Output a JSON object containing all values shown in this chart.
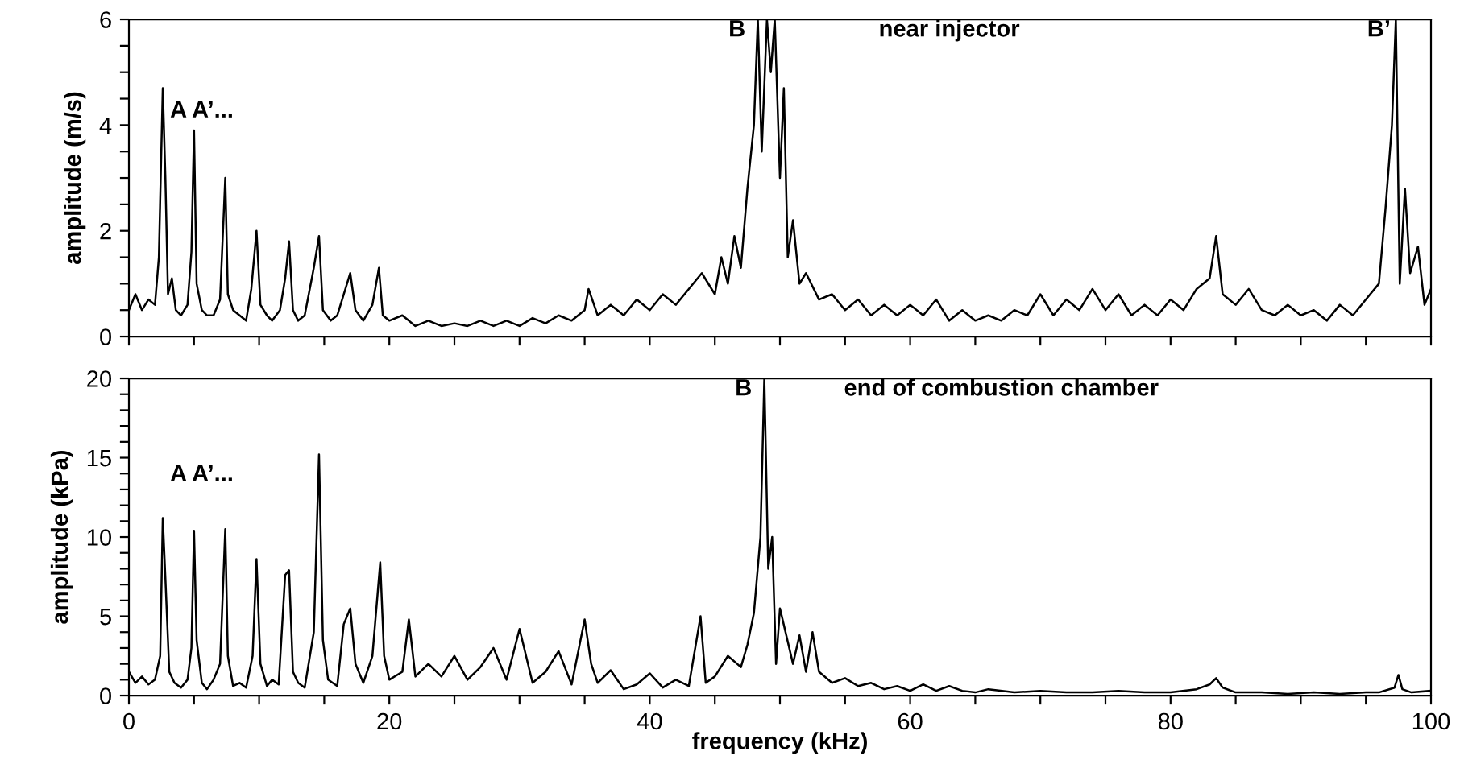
{
  "chart_data": [
    {
      "type": "line",
      "ylabel": "amplitude (m/s)",
      "xlim": [
        0,
        100
      ],
      "ylim": [
        0,
        6
      ],
      "tick_labels": "y",
      "grid": false,
      "xticks": [
        0,
        {
          "value": 5,
          "label": null
        },
        {
          "value": 10,
          "label": null
        },
        {
          "value": 15,
          "label": null
        },
        20,
        {
          "value": 25,
          "label": null
        },
        {
          "value": 30,
          "label": null
        },
        {
          "value": 35,
          "label": null
        },
        40,
        {
          "value": 45,
          "label": null
        },
        {
          "value": 50,
          "label": null
        },
        {
          "value": 55,
          "label": null
        },
        60,
        {
          "value": 65,
          "label": null
        },
        {
          "value": 70,
          "label": null
        },
        {
          "value": 75,
          "label": null
        },
        80,
        {
          "value": 85,
          "label": null
        },
        {
          "value": 90,
          "label": null
        },
        {
          "value": 95,
          "label": null
        },
        100
      ],
      "yticks": [
        0,
        {
          "value": 0.5,
          "label": null
        },
        {
          "value": 1,
          "label": null
        },
        {
          "value": 1.5,
          "label": null
        },
        2,
        {
          "value": 2.5,
          "label": null
        },
        {
          "value": 3,
          "label": null
        },
        {
          "value": 3.5,
          "label": null
        },
        4,
        {
          "value": 4.5,
          "label": null
        },
        {
          "value": 5,
          "label": null
        },
        {
          "value": 5.5,
          "label": null
        },
        6
      ],
      "annotations": [
        "A A’...",
        "B",
        "near injector",
        "B’"
      ],
      "series": [
        {
          "color": "#000000",
          "x": [
            0,
            0.5,
            1,
            1.5,
            2,
            2.3,
            2.6,
            2.8,
            3.0,
            3.3,
            3.6,
            4,
            4.5,
            4.8,
            5.0,
            5.2,
            5.6,
            6,
            6.5,
            7,
            7.4,
            7.6,
            8,
            8.5,
            9,
            9.4,
            9.8,
            10.1,
            10.6,
            11,
            11.6,
            12.0,
            12.3,
            12.6,
            13,
            13.5,
            14.2,
            14.6,
            14.9,
            15.5,
            16,
            16.5,
            17,
            17.4,
            18,
            18.7,
            19.2,
            19.5,
            20,
            21,
            22,
            23,
            24,
            25,
            26,
            27,
            28,
            29,
            30,
            31,
            32,
            33,
            34,
            35,
            35.3,
            36,
            37,
            38,
            39,
            40,
            41,
            42,
            43,
            44,
            45,
            45.5,
            46,
            46.5,
            47,
            47.5,
            48,
            48.3,
            48.6,
            49,
            49.3,
            49.6,
            50,
            50.3,
            50.6,
            51,
            51.5,
            52,
            53,
            54,
            55,
            56,
            57,
            58,
            59,
            60,
            61,
            62,
            63,
            64,
            65,
            66,
            67,
            68,
            69,
            70,
            71,
            72,
            73,
            74,
            75,
            76,
            77,
            78,
            79,
            80,
            81,
            82,
            83,
            83.5,
            84,
            85,
            86,
            87,
            88,
            89,
            90,
            91,
            92,
            93,
            94,
            95,
            96,
            96.5,
            97,
            97.3,
            97.6,
            98,
            98.4,
            99,
            99.5,
            100
          ],
          "values": [
            0.5,
            0.8,
            0.5,
            0.7,
            0.6,
            1.5,
            4.7,
            3.0,
            0.8,
            1.1,
            0.5,
            0.4,
            0.6,
            1.6,
            3.9,
            1.0,
            0.5,
            0.4,
            0.4,
            0.7,
            3.0,
            0.8,
            0.5,
            0.4,
            0.3,
            0.9,
            2.0,
            0.6,
            0.4,
            0.3,
            0.5,
            1.1,
            1.8,
            0.5,
            0.3,
            0.4,
            1.3,
            1.9,
            0.5,
            0.3,
            0.4,
            0.8,
            1.2,
            0.5,
            0.3,
            0.6,
            1.3,
            0.4,
            0.3,
            0.4,
            0.2,
            0.3,
            0.2,
            0.25,
            0.2,
            0.3,
            0.2,
            0.3,
            0.2,
            0.35,
            0.25,
            0.4,
            0.3,
            0.5,
            0.9,
            0.4,
            0.6,
            0.4,
            0.7,
            0.5,
            0.8,
            0.6,
            0.9,
            1.2,
            0.8,
            1.5,
            1.0,
            1.9,
            1.3,
            2.8,
            4.0,
            6,
            3.5,
            6,
            5.0,
            6,
            3.0,
            4.7,
            1.5,
            2.2,
            1.0,
            1.2,
            0.7,
            0.8,
            0.5,
            0.7,
            0.4,
            0.6,
            0.4,
            0.6,
            0.4,
            0.7,
            0.3,
            0.5,
            0.3,
            0.4,
            0.3,
            0.5,
            0.4,
            0.8,
            0.4,
            0.7,
            0.5,
            0.9,
            0.5,
            0.8,
            0.4,
            0.6,
            0.4,
            0.7,
            0.5,
            0.9,
            1.1,
            1.9,
            0.8,
            0.6,
            0.9,
            0.5,
            0.4,
            0.6,
            0.4,
            0.5,
            0.3,
            0.6,
            0.4,
            0.7,
            1.0,
            2.4,
            4.0,
            6,
            1.0,
            2.8,
            1.2,
            1.7,
            0.6,
            0.9
          ]
        }
      ]
    },
    {
      "type": "line",
      "xlabel": "frequency (kHz)",
      "ylabel": "amplitude (kPa)",
      "xlim": [
        0,
        100
      ],
      "ylim": [
        0,
        20
      ],
      "grid": false,
      "xticks": [
        0,
        {
          "value": 5,
          "label": null
        },
        {
          "value": 10,
          "label": null
        },
        {
          "value": 15,
          "label": null
        },
        20,
        {
          "value": 25,
          "label": null
        },
        {
          "value": 30,
          "label": null
        },
        {
          "value": 35,
          "label": null
        },
        40,
        {
          "value": 45,
          "label": null
        },
        {
          "value": 50,
          "label": null
        },
        {
          "value": 55,
          "label": null
        },
        60,
        {
          "value": 65,
          "label": null
        },
        {
          "value": 70,
          "label": null
        },
        {
          "value": 75,
          "label": null
        },
        80,
        {
          "value": 85,
          "label": null
        },
        {
          "value": 90,
          "label": null
        },
        {
          "value": 95,
          "label": null
        },
        100
      ],
      "yticks": [
        0,
        {
          "value": 1,
          "label": null
        },
        {
          "value": 2,
          "label": null
        },
        {
          "value": 3,
          "label": null
        },
        {
          "value": 4,
          "label": null
        },
        5,
        {
          "value": 6,
          "label": null
        },
        {
          "value": 7,
          "label": null
        },
        {
          "value": 8,
          "label": null
        },
        {
          "value": 9,
          "label": null
        },
        10,
        {
          "value": 11,
          "label": null
        },
        {
          "value": 12,
          "label": null
        },
        {
          "value": 13,
          "label": null
        },
        {
          "value": 14,
          "label": null
        },
        15,
        {
          "value": 16,
          "label": null
        },
        {
          "value": 17,
          "label": null
        },
        {
          "value": 18,
          "label": null
        },
        {
          "value": 19,
          "label": null
        },
        20
      ],
      "annotations": [
        "B",
        "end of combustion chamber",
        "A A’..."
      ],
      "series": [
        {
          "color": "#000000",
          "x": [
            0,
            0.5,
            1,
            1.5,
            2,
            2.4,
            2.6,
            2.8,
            3.1,
            3.5,
            4,
            4.5,
            4.8,
            5.0,
            5.2,
            5.6,
            6,
            6.5,
            7.0,
            7.4,
            7.6,
            8,
            8.5,
            9,
            9.5,
            9.8,
            10.1,
            10.6,
            11,
            11.5,
            12.0,
            12.3,
            12.6,
            13,
            13.5,
            14.2,
            14.6,
            14.9,
            15.3,
            16,
            16.5,
            17.0,
            17.4,
            18,
            18.7,
            19.3,
            19.6,
            20,
            21,
            21.5,
            22,
            23,
            24,
            25,
            26,
            27,
            28,
            29,
            30,
            31,
            32,
            33,
            34,
            35,
            35.5,
            36,
            37,
            38,
            39,
            40,
            41,
            42,
            43,
            43.9,
            44.3,
            45,
            46,
            47,
            47.5,
            48,
            48.5,
            48.8,
            49.1,
            49.4,
            49.7,
            50,
            51,
            51.5,
            52,
            52.5,
            53,
            54,
            55,
            56,
            57,
            58,
            59,
            60,
            61,
            62,
            63,
            64,
            65,
            66,
            68,
            70,
            72,
            74,
            76,
            78,
            80,
            82,
            83,
            83.5,
            84,
            85,
            87,
            89,
            91,
            93,
            95,
            96,
            97.2,
            97.5,
            97.8,
            98.5,
            100
          ],
          "values": [
            1.5,
            0.8,
            1.2,
            0.7,
            1.0,
            2.5,
            11.2,
            7.4,
            1.5,
            0.8,
            0.5,
            1.0,
            3.0,
            10.4,
            3.5,
            0.8,
            0.4,
            1.0,
            2.0,
            10.5,
            2.5,
            0.6,
            0.8,
            0.5,
            2.5,
            8.6,
            2.0,
            0.6,
            1.0,
            0.7,
            7.6,
            7.9,
            1.5,
            0.8,
            0.5,
            4.0,
            15.2,
            3.5,
            1.0,
            0.6,
            4.5,
            5.5,
            2.0,
            0.8,
            2.5,
            8.4,
            2.5,
            1.0,
            1.5,
            4.8,
            1.2,
            2.0,
            1.2,
            2.5,
            1.0,
            1.8,
            3.0,
            1.0,
            4.2,
            0.8,
            1.5,
            2.8,
            0.7,
            4.8,
            2.0,
            0.8,
            1.6,
            0.4,
            0.7,
            1.4,
            0.5,
            1.0,
            0.6,
            5.0,
            0.8,
            1.2,
            2.5,
            1.8,
            3.2,
            5.2,
            10,
            20,
            8,
            10,
            2,
            5.5,
            2.0,
            3.8,
            1.5,
            4.0,
            1.5,
            0.8,
            1.1,
            0.6,
            0.8,
            0.4,
            0.6,
            0.3,
            0.7,
            0.3,
            0.6,
            0.3,
            0.2,
            0.4,
            0.2,
            0.3,
            0.2,
            0.2,
            0.3,
            0.2,
            0.2,
            0.4,
            0.7,
            1.1,
            0.5,
            0.2,
            0.2,
            0.1,
            0.2,
            0.1,
            0.2,
            0.2,
            0.5,
            1.3,
            0.4,
            0.2,
            0.3
          ]
        }
      ]
    }
  ]
}
